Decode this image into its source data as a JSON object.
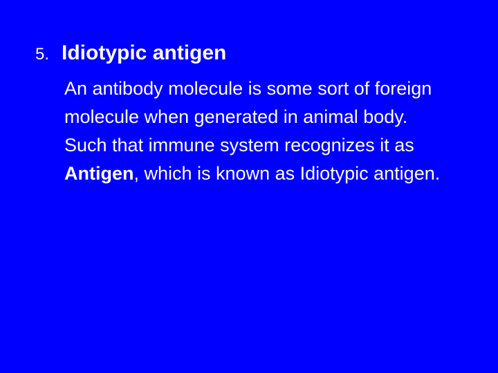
{
  "slide": {
    "number": "5.",
    "title": "Idiotypic antigen",
    "body_part1": "An antibody molecule is some sort of foreign molecule when generated in animal body. Such that immune system recognizes it as ",
    "body_bold": "Antigen",
    "body_part2": ", which is known as Idiotypic antigen.",
    "background_color": "#0000ff",
    "text_color": "#ffffff",
    "title_fontsize": 30,
    "body_fontsize": 27,
    "font_family": "Verdana"
  }
}
